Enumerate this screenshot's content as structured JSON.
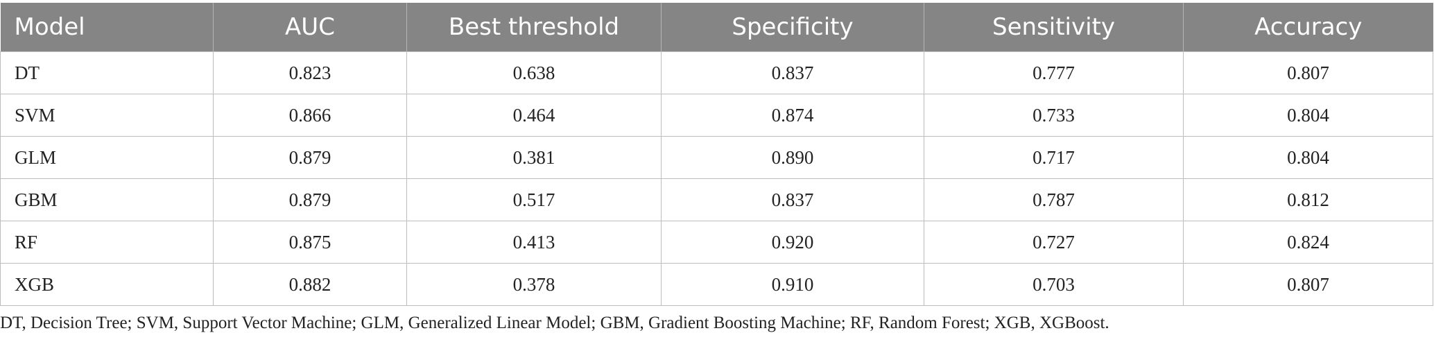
{
  "table": {
    "columns": [
      "Model",
      "AUC",
      "Best threshold",
      "Specificity",
      "Sensitivity",
      "Accuracy"
    ],
    "rows": [
      [
        "DT",
        "0.823",
        "0.638",
        "0.837",
        "0.777",
        "0.807"
      ],
      [
        "SVM",
        "0.866",
        "0.464",
        "0.874",
        "0.733",
        "0.804"
      ],
      [
        "GLM",
        "0.879",
        "0.381",
        "0.890",
        "0.717",
        "0.804"
      ],
      [
        "GBM",
        "0.879",
        "0.517",
        "0.837",
        "0.787",
        "0.812"
      ],
      [
        "RF",
        "0.875",
        "0.413",
        "0.920",
        "0.727",
        "0.824"
      ],
      [
        "XGB",
        "0.882",
        "0.378",
        "0.910",
        "0.703",
        "0.807"
      ]
    ],
    "footnote": "DT, Decision Tree; SVM, Support Vector Machine; GLM, Generalized Linear Model; GBM, Gradient Boosting Machine; RF, Random Forest; XGB, XGBoost."
  }
}
